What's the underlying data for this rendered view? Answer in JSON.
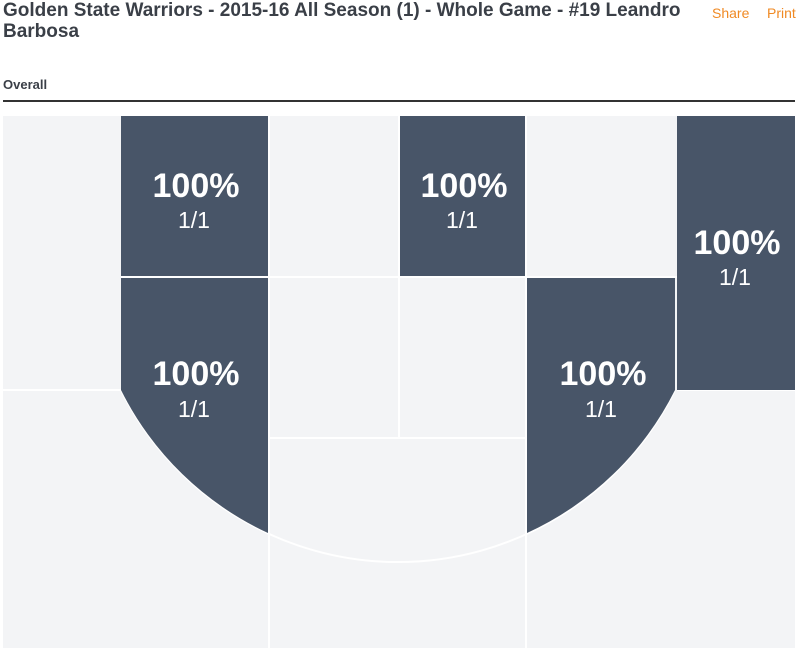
{
  "header": {
    "title": "Golden State Warriors - 2015-16 All Season (1) - Whole Game - #19 Leandro Barbosa",
    "actions": [
      "Share",
      "Print"
    ]
  },
  "tab": "Overall",
  "zones": [
    {
      "pct": "100%",
      "fraction": "1/1"
    },
    {
      "pct": "100%",
      "fraction": "1/1"
    },
    {
      "pct": "100%",
      "fraction": "1/1"
    },
    {
      "pct": "100%",
      "fraction": "1/1"
    },
    {
      "pct": "100%",
      "fraction": "1/1"
    }
  ]
}
